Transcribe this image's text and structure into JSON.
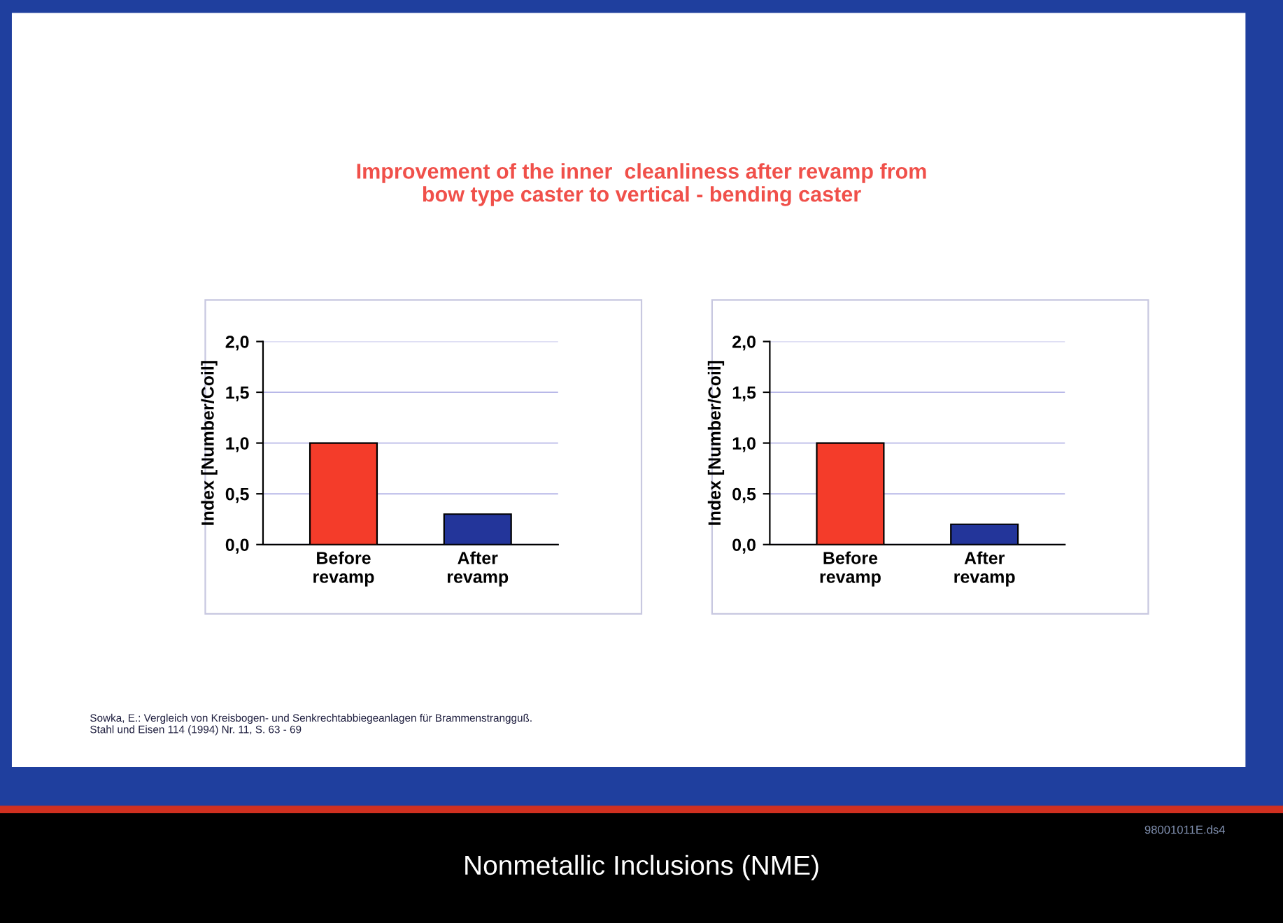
{
  "chart_data": [
    {
      "type": "bar",
      "title": "Improvement of the inner  cleanliness after revamp from\nbow type caster to vertical - bending caster",
      "ylabel": "Index [Number/Coil]",
      "categories": [
        "Before\nrevamp",
        "After\nrevamp"
      ],
      "values": [
        1.0,
        0.3
      ],
      "colors": [
        "#f43c2a",
        "#23359a"
      ],
      "ylim": [
        0,
        2.0
      ],
      "yticks": [
        {
          "value": 0,
          "label": "0,0"
        },
        {
          "value": 0.5,
          "label": "0,5"
        },
        {
          "value": 1.0,
          "label": "1,0"
        },
        {
          "value": 1.5,
          "label": "1,5"
        },
        {
          "value": 2.0,
          "label": "2,0"
        }
      ],
      "grid": "y",
      "annotations": [
        "Sowka, E.: Vergleich von Kreisbogen- und Senkrechtabbiegeanlagen für Brammenstrangguß.\nStahl und Eisen 114 (1994) Nr. 11, S. 63 - 69",
        "Nonmetallic Inclusions (NME)",
        "98001011E.ds4"
      ]
    },
    {
      "type": "bar",
      "ylabel": "Index [Number/Coil]",
      "categories": [
        "Before\nrevamp",
        "After\nrevamp"
      ],
      "values": [
        1.0,
        0.2
      ],
      "colors": [
        "#f43c2a",
        "#23359a"
      ],
      "ylim": [
        0,
        2.0
      ],
      "yticks": [
        {
          "value": 0,
          "label": "0,0"
        },
        {
          "value": 0.5,
          "label": "0,5"
        },
        {
          "value": 1.0,
          "label": "1,0"
        },
        {
          "value": 1.5,
          "label": "1,5"
        },
        {
          "value": 2.0,
          "label": "2,0"
        }
      ],
      "grid": "y"
    }
  ]
}
